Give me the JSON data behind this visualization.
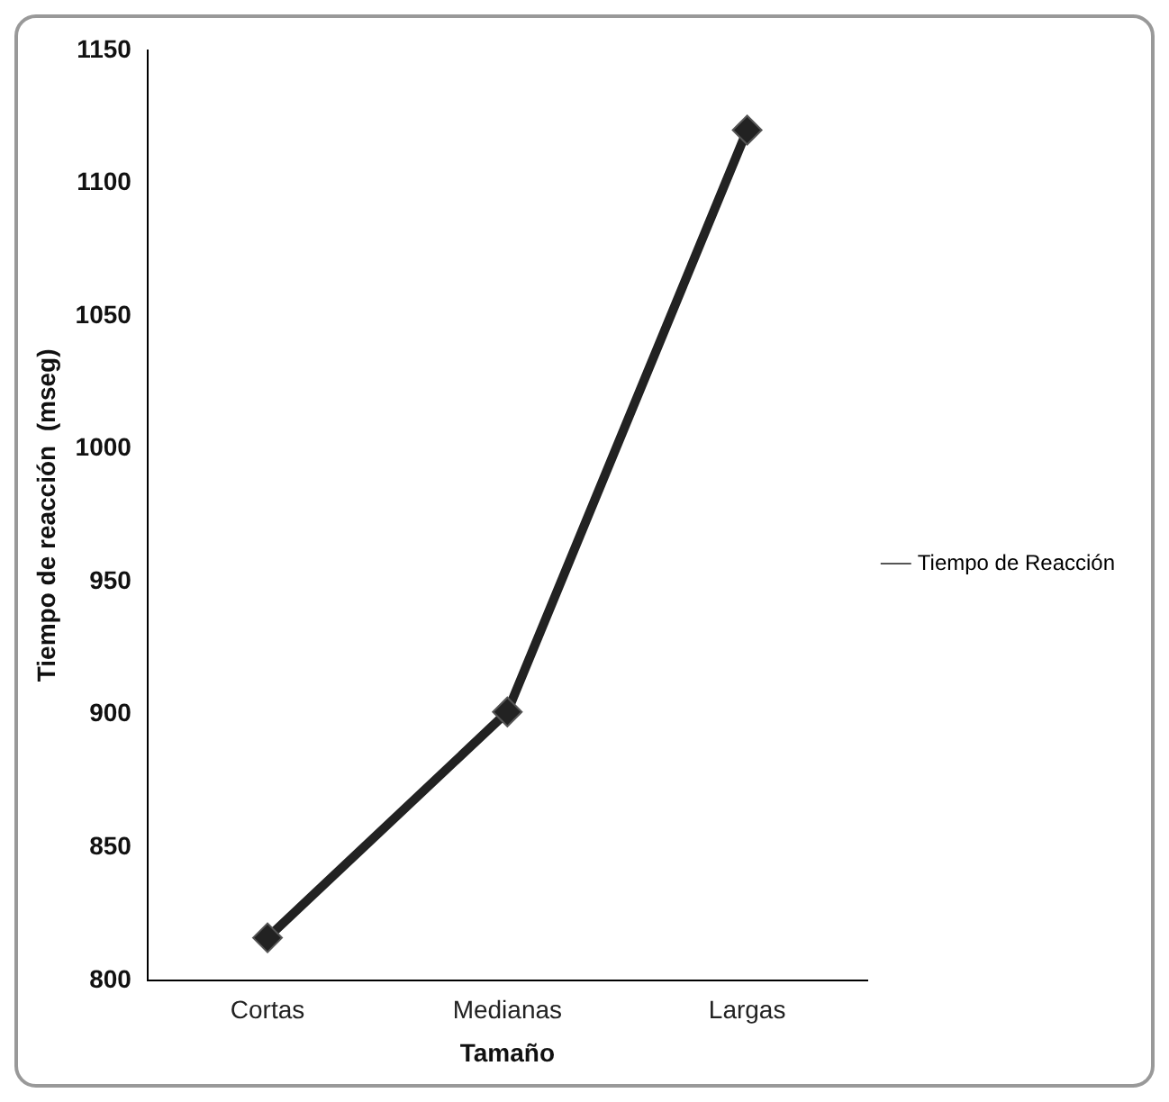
{
  "chart_data": {
    "type": "line",
    "xlabel": "Tamaño",
    "ylabel": "Tiempo de reacción  (mseg)",
    "categories": [
      "Cortas",
      "Medianas",
      "Largas"
    ],
    "series": [
      {
        "name": "Tiempo de Reacción",
        "color": "#222222",
        "values": [
          816,
          901,
          1120
        ]
      }
    ],
    "ylim": [
      800,
      1150
    ],
    "yticks": [
      800,
      850,
      900,
      950,
      1000,
      1050,
      1100,
      1150
    ],
    "grid": false,
    "legend": "right",
    "marker": "diamond",
    "line_style": "solid"
  }
}
